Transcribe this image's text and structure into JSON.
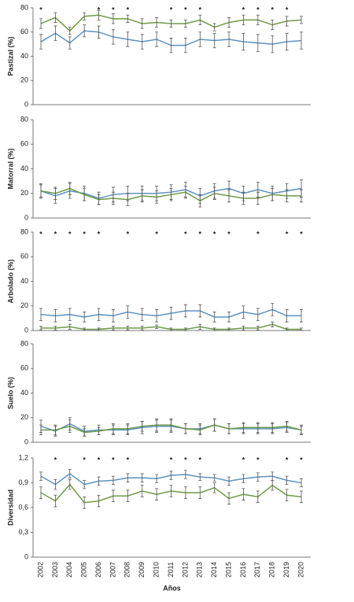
{
  "chart_data": [
    {
      "type": "line",
      "ylabel": "Pastizal (%)",
      "ylim": [
        0,
        80
      ],
      "yticks": [
        0,
        20,
        40,
        60,
        80
      ],
      "marker": "*",
      "significant": [
        "2002",
        "2006",
        "2007",
        "2008",
        "2011",
        "2012",
        "2013",
        "2016",
        "2017",
        "2018",
        "2019"
      ],
      "series": [
        {
          "color": "#6f9a45",
          "values": [
            67,
            72,
            61,
            73,
            74,
            71,
            71,
            67,
            68,
            67,
            67,
            70,
            64,
            68,
            70,
            70,
            66,
            69,
            70
          ],
          "errors": [
            4,
            4,
            3,
            3,
            4,
            4,
            3,
            4,
            4,
            3,
            3,
            4,
            3,
            4,
            4,
            4,
            4,
            4,
            3
          ]
        },
        {
          "color": "#5b93c2",
          "values": [
            52,
            59,
            51,
            61,
            60,
            56,
            54,
            52,
            54,
            49,
            49,
            54,
            53,
            54,
            52,
            51,
            50,
            52,
            53
          ],
          "errors": [
            6,
            6,
            5,
            5,
            5,
            6,
            6,
            6,
            6,
            6,
            6,
            6,
            6,
            6,
            7,
            7,
            7,
            7,
            7
          ]
        }
      ]
    },
    {
      "type": "line",
      "ylabel": "Matorral (%)",
      "ylim": [
        0,
        80
      ],
      "yticks": [
        0,
        20,
        40,
        60,
        80
      ],
      "series": [
        {
          "color": "#5b93c2",
          "values": [
            22,
            18,
            22,
            20,
            16,
            19,
            20,
            20,
            20,
            21,
            23,
            18,
            22,
            24,
            20,
            23,
            20,
            22,
            24
          ],
          "errors": [
            6,
            6,
            6,
            6,
            5,
            6,
            6,
            6,
            6,
            6,
            6,
            6,
            6,
            6,
            6,
            6,
            6,
            6,
            7
          ]
        },
        {
          "color": "#6f9a45",
          "values": [
            22,
            20,
            24,
            19,
            15,
            16,
            15,
            18,
            17,
            19,
            21,
            14,
            20,
            18,
            16,
            16,
            19,
            18,
            18
          ],
          "errors": [
            5,
            5,
            5,
            5,
            4,
            5,
            5,
            5,
            5,
            5,
            5,
            5,
            5,
            5,
            5,
            5,
            5,
            5,
            5
          ]
        }
      ]
    },
    {
      "type": "line",
      "ylabel": "Arbolado (%)",
      "ylim": [
        0,
        80
      ],
      "yticks": [
        0,
        20,
        40,
        60,
        80
      ],
      "marker": "*",
      "significant": [
        "2002",
        "2003",
        "2004",
        "2005",
        "2006",
        "2008",
        "2010",
        "2012",
        "2013",
        "2014",
        "2015",
        "2017",
        "2019",
        "2020"
      ],
      "series": [
        {
          "color": "#5b93c2",
          "values": [
            13,
            12,
            13,
            11,
            13,
            12,
            15,
            13,
            12,
            14,
            16,
            16,
            11,
            11,
            15,
            13,
            17,
            12,
            12
          ],
          "errors": [
            5,
            5,
            5,
            4,
            5,
            5,
            5,
            5,
            5,
            5,
            5,
            5,
            4,
            4,
            5,
            5,
            5,
            5,
            5
          ]
        },
        {
          "color": "#6f9a45",
          "values": [
            2,
            2,
            3,
            1,
            1,
            2,
            2,
            2,
            3,
            1,
            1,
            3,
            1,
            1,
            2,
            2,
            5,
            1,
            1
          ],
          "errors": [
            1.5,
            1.5,
            2,
            1,
            1,
            1.5,
            1.5,
            1.5,
            1.5,
            1,
            1,
            2,
            1,
            1,
            1.5,
            1.5,
            2,
            1,
            1
          ]
        }
      ]
    },
    {
      "type": "line",
      "ylabel": "Suelo (%)",
      "ylim": [
        0,
        80
      ],
      "yticks": [
        0,
        20,
        40,
        60,
        80
      ],
      "series": [
        {
          "color": "#5b93c2",
          "values": [
            13,
            9,
            15,
            9,
            10,
            10,
            10,
            12,
            13,
            13,
            11,
            11,
            14,
            11,
            11,
            11,
            11,
            12,
            10
          ],
          "errors": [
            5,
            4,
            5,
            4,
            4,
            4,
            4,
            5,
            5,
            5,
            4,
            4,
            5,
            4,
            4,
            4,
            4,
            4,
            4
          ]
        },
        {
          "color": "#6f9a45",
          "values": [
            10,
            10,
            13,
            8,
            9,
            11,
            11,
            13,
            14,
            14,
            11,
            10,
            14,
            11,
            12,
            12,
            12,
            13,
            10
          ],
          "errors": [
            4,
            4,
            5,
            3,
            3,
            4,
            4,
            4,
            5,
            5,
            4,
            4,
            5,
            4,
            4,
            4,
            4,
            4,
            3
          ]
        }
      ]
    },
    {
      "type": "line",
      "ylabel": "Diversidad",
      "xlabel": "Años",
      "ylim": [
        0,
        1.2
      ],
      "yticks": [
        0,
        {
          "value": 0.3,
          "label": "0,3"
        },
        {
          "value": 0.6,
          "label": "0,6"
        },
        {
          "value": 0.9,
          "label": "0,9"
        },
        {
          "value": 1.2,
          "label": "1,2"
        }
      ],
      "marker": "*",
      "significant": [
        "2003",
        "2005",
        "2006",
        "2007",
        "2008",
        "2011",
        "2012",
        "2013",
        "2016",
        "2017",
        "2019",
        "2020"
      ],
      "categories": [
        "2002",
        "2003",
        "2004",
        "2005",
        "2006",
        "2007",
        "2008",
        "2009",
        "2010",
        "2011",
        "2012",
        "2013",
        "2014",
        "2015",
        "2016",
        "2017",
        "2018",
        "2019",
        "2020"
      ],
      "series": [
        {
          "color": "#5b93c2",
          "values": [
            0.98,
            0.88,
            1.01,
            0.88,
            0.92,
            0.93,
            0.96,
            0.96,
            0.95,
            0.99,
            1.0,
            0.97,
            0.96,
            0.92,
            0.95,
            0.97,
            0.98,
            0.93,
            0.9
          ],
          "errors": [
            0.05,
            0.06,
            0.05,
            0.05,
            0.05,
            0.05,
            0.05,
            0.05,
            0.05,
            0.05,
            0.05,
            0.04,
            0.04,
            0.05,
            0.05,
            0.05,
            0.05,
            0.05,
            0.05
          ]
        },
        {
          "color": "#6f9a45",
          "values": [
            0.78,
            0.68,
            0.88,
            0.66,
            0.68,
            0.74,
            0.74,
            0.8,
            0.76,
            0.8,
            0.78,
            0.78,
            0.84,
            0.71,
            0.76,
            0.73,
            0.87,
            0.75,
            0.73
          ],
          "errors": [
            0.07,
            0.07,
            0.06,
            0.07,
            0.07,
            0.07,
            0.07,
            0.07,
            0.07,
            0.07,
            0.07,
            0.07,
            0.06,
            0.07,
            0.07,
            0.07,
            0.06,
            0.07,
            0.07
          ]
        }
      ]
    }
  ]
}
